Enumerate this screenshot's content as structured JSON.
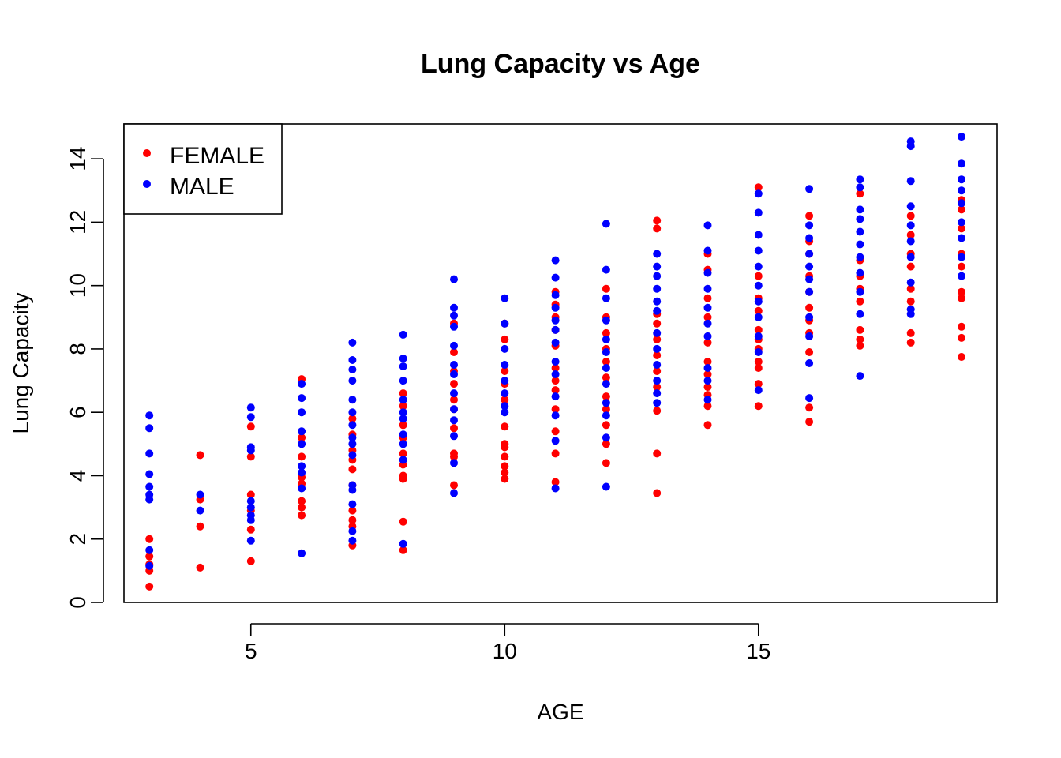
{
  "chart_data": {
    "type": "scatter",
    "title": "Lung Capacity vs Age",
    "xlabel": "AGE",
    "ylabel": "Lung Capacity",
    "xlim": [
      2.5,
      19.7
    ],
    "ylim": [
      0,
      15.1
    ],
    "xticks": [
      "5",
      "10",
      "15"
    ],
    "yticks": [
      "0",
      "2",
      "4",
      "6",
      "8",
      "10",
      "12",
      "14"
    ],
    "grid": false,
    "legend_position": "top-left",
    "colors": {
      "FEMALE": "#ff0000",
      "MALE": "#0000ff"
    },
    "series": [
      {
        "name": "FEMALE",
        "points": [
          [
            3,
            0.5
          ],
          [
            3,
            1.0
          ],
          [
            3,
            1.2
          ],
          [
            3,
            1.45
          ],
          [
            3,
            2.0
          ],
          [
            4,
            1.1
          ],
          [
            4,
            2.4
          ],
          [
            4,
            3.25
          ],
          [
            4,
            4.65
          ],
          [
            5,
            1.3
          ],
          [
            5,
            2.3
          ],
          [
            5,
            2.9
          ],
          [
            5,
            3.4
          ],
          [
            5,
            4.6
          ],
          [
            5,
            5.55
          ],
          [
            6,
            2.75
          ],
          [
            6,
            3.0
          ],
          [
            6,
            3.2
          ],
          [
            6,
            3.75
          ],
          [
            6,
            3.95
          ],
          [
            6,
            4.6
          ],
          [
            6,
            5.2
          ],
          [
            6,
            7.05
          ],
          [
            7,
            1.8
          ],
          [
            7,
            2.4
          ],
          [
            7,
            2.6
          ],
          [
            7,
            2.9
          ],
          [
            7,
            3.7
          ],
          [
            7,
            4.2
          ],
          [
            7,
            4.5
          ],
          [
            7,
            4.8
          ],
          [
            7,
            5.3
          ],
          [
            7,
            5.8
          ],
          [
            8,
            1.65
          ],
          [
            8,
            2.55
          ],
          [
            8,
            3.9
          ],
          [
            8,
            4.0
          ],
          [
            8,
            4.35
          ],
          [
            8,
            4.7
          ],
          [
            8,
            5.2
          ],
          [
            8,
            5.6
          ],
          [
            8,
            6.2
          ],
          [
            8,
            6.6
          ],
          [
            9,
            3.7
          ],
          [
            9,
            4.6
          ],
          [
            9,
            4.7
          ],
          [
            9,
            5.5
          ],
          [
            9,
            6.1
          ],
          [
            9,
            6.4
          ],
          [
            9,
            6.9
          ],
          [
            9,
            7.3
          ],
          [
            9,
            7.9
          ],
          [
            9,
            8.8
          ],
          [
            10,
            3.9
          ],
          [
            10,
            4.1
          ],
          [
            10,
            4.3
          ],
          [
            10,
            4.6
          ],
          [
            10,
            4.9
          ],
          [
            10,
            5.0
          ],
          [
            10,
            5.55
          ],
          [
            10,
            6.4
          ],
          [
            10,
            6.9
          ],
          [
            10,
            7.3
          ],
          [
            10,
            8.3
          ],
          [
            10,
            8.8
          ],
          [
            11,
            3.8
          ],
          [
            11,
            4.7
          ],
          [
            11,
            5.4
          ],
          [
            11,
            6.1
          ],
          [
            11,
            6.7
          ],
          [
            11,
            7.0
          ],
          [
            11,
            7.4
          ],
          [
            11,
            8.1
          ],
          [
            11,
            8.6
          ],
          [
            11,
            9.0
          ],
          [
            11,
            9.4
          ],
          [
            11,
            9.8
          ],
          [
            12,
            4.4
          ],
          [
            12,
            5.0
          ],
          [
            12,
            5.6
          ],
          [
            12,
            6.1
          ],
          [
            12,
            6.5
          ],
          [
            12,
            7.1
          ],
          [
            12,
            7.6
          ],
          [
            12,
            8.0
          ],
          [
            12,
            8.5
          ],
          [
            12,
            9.0
          ],
          [
            12,
            9.9
          ],
          [
            13,
            3.45
          ],
          [
            13,
            4.7
          ],
          [
            13,
            6.05
          ],
          [
            13,
            6.8
          ],
          [
            13,
            7.3
          ],
          [
            13,
            7.8
          ],
          [
            13,
            8.3
          ],
          [
            13,
            8.8
          ],
          [
            13,
            9.1
          ],
          [
            13,
            11.8
          ],
          [
            13,
            12.05
          ],
          [
            14,
            5.6
          ],
          [
            14,
            6.2
          ],
          [
            14,
            6.55
          ],
          [
            14,
            6.8
          ],
          [
            14,
            7.2
          ],
          [
            14,
            7.6
          ],
          [
            14,
            8.2
          ],
          [
            14,
            9.0
          ],
          [
            14,
            9.6
          ],
          [
            14,
            10.5
          ],
          [
            14,
            11.0
          ],
          [
            15,
            6.2
          ],
          [
            15,
            6.9
          ],
          [
            15,
            7.4
          ],
          [
            15,
            7.6
          ],
          [
            15,
            8.0
          ],
          [
            15,
            8.3
          ],
          [
            15,
            8.6
          ],
          [
            15,
            9.2
          ],
          [
            15,
            9.6
          ],
          [
            15,
            10.3
          ],
          [
            15,
            13.1
          ],
          [
            16,
            5.7
          ],
          [
            16,
            6.15
          ],
          [
            16,
            7.9
          ],
          [
            16,
            8.5
          ],
          [
            16,
            8.9
          ],
          [
            16,
            9.3
          ],
          [
            16,
            9.8
          ],
          [
            16,
            10.3
          ],
          [
            16,
            11.0
          ],
          [
            16,
            11.4
          ],
          [
            16,
            12.2
          ],
          [
            17,
            8.1
          ],
          [
            17,
            8.3
          ],
          [
            17,
            8.6
          ],
          [
            17,
            9.5
          ],
          [
            17,
            9.9
          ],
          [
            17,
            10.3
          ],
          [
            17,
            10.8
          ],
          [
            17,
            12.9
          ],
          [
            18,
            8.2
          ],
          [
            18,
            8.5
          ],
          [
            18,
            9.5
          ],
          [
            18,
            9.9
          ],
          [
            18,
            10.6
          ],
          [
            18,
            11.0
          ],
          [
            18,
            11.6
          ],
          [
            18,
            12.2
          ],
          [
            19,
            7.75
          ],
          [
            19,
            8.35
          ],
          [
            19,
            8.7
          ],
          [
            19,
            9.6
          ],
          [
            19,
            9.8
          ],
          [
            19,
            10.6
          ],
          [
            19,
            11.0
          ],
          [
            19,
            11.8
          ],
          [
            19,
            12.4
          ],
          [
            19,
            12.7
          ]
        ]
      },
      {
        "name": "MALE",
        "points": [
          [
            3,
            1.15
          ],
          [
            3,
            1.65
          ],
          [
            3,
            3.25
          ],
          [
            3,
            3.4
          ],
          [
            3,
            3.65
          ],
          [
            3,
            4.05
          ],
          [
            3,
            4.7
          ],
          [
            3,
            5.5
          ],
          [
            3,
            5.9
          ],
          [
            4,
            2.9
          ],
          [
            4,
            3.4
          ],
          [
            5,
            1.95
          ],
          [
            5,
            2.6
          ],
          [
            5,
            2.75
          ],
          [
            5,
            3.0
          ],
          [
            5,
            3.2
          ],
          [
            5,
            4.8
          ],
          [
            5,
            4.9
          ],
          [
            5,
            5.85
          ],
          [
            5,
            6.15
          ],
          [
            6,
            1.55
          ],
          [
            6,
            3.6
          ],
          [
            6,
            4.1
          ],
          [
            6,
            4.3
          ],
          [
            6,
            5.0
          ],
          [
            6,
            5.4
          ],
          [
            6,
            6.0
          ],
          [
            6,
            6.45
          ],
          [
            6,
            6.9
          ],
          [
            7,
            1.95
          ],
          [
            7,
            2.25
          ],
          [
            7,
            3.1
          ],
          [
            7,
            3.55
          ],
          [
            7,
            3.7
          ],
          [
            7,
            4.65
          ],
          [
            7,
            5.0
          ],
          [
            7,
            5.2
          ],
          [
            7,
            5.6
          ],
          [
            7,
            6.0
          ],
          [
            7,
            6.4
          ],
          [
            7,
            7.0
          ],
          [
            7,
            7.35
          ],
          [
            7,
            7.65
          ],
          [
            7,
            8.2
          ],
          [
            8,
            1.85
          ],
          [
            8,
            4.5
          ],
          [
            8,
            5.0
          ],
          [
            8,
            5.3
          ],
          [
            8,
            5.8
          ],
          [
            8,
            6.0
          ],
          [
            8,
            6.4
          ],
          [
            8,
            7.0
          ],
          [
            8,
            7.45
          ],
          [
            8,
            7.7
          ],
          [
            8,
            8.45
          ],
          [
            9,
            3.45
          ],
          [
            9,
            4.4
          ],
          [
            9,
            5.25
          ],
          [
            9,
            5.75
          ],
          [
            9,
            6.1
          ],
          [
            9,
            6.6
          ],
          [
            9,
            7.2
          ],
          [
            9,
            7.5
          ],
          [
            9,
            8.1
          ],
          [
            9,
            8.7
          ],
          [
            9,
            9.05
          ],
          [
            9,
            9.3
          ],
          [
            9,
            10.2
          ],
          [
            10,
            6.0
          ],
          [
            10,
            6.2
          ],
          [
            10,
            6.6
          ],
          [
            10,
            7.0
          ],
          [
            10,
            7.5
          ],
          [
            10,
            8.0
          ],
          [
            10,
            8.8
          ],
          [
            10,
            9.6
          ],
          [
            11,
            3.6
          ],
          [
            11,
            5.1
          ],
          [
            11,
            5.9
          ],
          [
            11,
            6.5
          ],
          [
            11,
            7.2
          ],
          [
            11,
            7.6
          ],
          [
            11,
            8.2
          ],
          [
            11,
            8.6
          ],
          [
            11,
            8.9
          ],
          [
            11,
            9.3
          ],
          [
            11,
            9.7
          ],
          [
            11,
            10.25
          ],
          [
            11,
            10.8
          ],
          [
            12,
            3.65
          ],
          [
            12,
            5.2
          ],
          [
            12,
            5.9
          ],
          [
            12,
            6.3
          ],
          [
            12,
            6.9
          ],
          [
            12,
            7.4
          ],
          [
            12,
            7.9
          ],
          [
            12,
            8.3
          ],
          [
            12,
            8.9
          ],
          [
            12,
            9.6
          ],
          [
            12,
            10.5
          ],
          [
            12,
            11.95
          ],
          [
            13,
            6.3
          ],
          [
            13,
            6.6
          ],
          [
            13,
            7.0
          ],
          [
            13,
            7.5
          ],
          [
            13,
            8.0
          ],
          [
            13,
            8.5
          ],
          [
            13,
            9.2
          ],
          [
            13,
            9.5
          ],
          [
            13,
            9.9
          ],
          [
            13,
            10.3
          ],
          [
            13,
            10.6
          ],
          [
            13,
            11.0
          ],
          [
            14,
            6.4
          ],
          [
            14,
            7.0
          ],
          [
            14,
            7.4
          ],
          [
            14,
            8.4
          ],
          [
            14,
            8.8
          ],
          [
            14,
            9.3
          ],
          [
            14,
            9.9
          ],
          [
            14,
            10.4
          ],
          [
            14,
            11.1
          ],
          [
            14,
            11.9
          ],
          [
            15,
            6.7
          ],
          [
            15,
            7.9
          ],
          [
            15,
            8.4
          ],
          [
            15,
            9.0
          ],
          [
            15,
            9.5
          ],
          [
            15,
            10.0
          ],
          [
            15,
            10.6
          ],
          [
            15,
            11.1
          ],
          [
            15,
            11.6
          ],
          [
            15,
            12.3
          ],
          [
            15,
            12.9
          ],
          [
            16,
            6.45
          ],
          [
            16,
            7.55
          ],
          [
            16,
            8.4
          ],
          [
            16,
            9.0
          ],
          [
            16,
            9.8
          ],
          [
            16,
            10.2
          ],
          [
            16,
            10.6
          ],
          [
            16,
            11.0
          ],
          [
            16,
            11.5
          ],
          [
            16,
            11.9
          ],
          [
            16,
            13.05
          ],
          [
            17,
            7.15
          ],
          [
            17,
            9.1
          ],
          [
            17,
            9.8
          ],
          [
            17,
            10.4
          ],
          [
            17,
            10.9
          ],
          [
            17,
            11.3
          ],
          [
            17,
            11.7
          ],
          [
            17,
            12.1
          ],
          [
            17,
            12.4
          ],
          [
            17,
            13.1
          ],
          [
            17,
            13.35
          ],
          [
            18,
            9.1
          ],
          [
            18,
            9.25
          ],
          [
            18,
            10.1
          ],
          [
            18,
            10.9
          ],
          [
            18,
            11.4
          ],
          [
            18,
            11.9
          ],
          [
            18,
            12.5
          ],
          [
            18,
            13.3
          ],
          [
            18,
            14.4
          ],
          [
            18,
            14.55
          ],
          [
            19,
            10.3
          ],
          [
            19,
            10.9
          ],
          [
            19,
            11.5
          ],
          [
            19,
            12.0
          ],
          [
            19,
            12.6
          ],
          [
            19,
            13.0
          ],
          [
            19,
            13.35
          ],
          [
            19,
            13.85
          ],
          [
            19,
            14.7
          ]
        ]
      }
    ]
  }
}
